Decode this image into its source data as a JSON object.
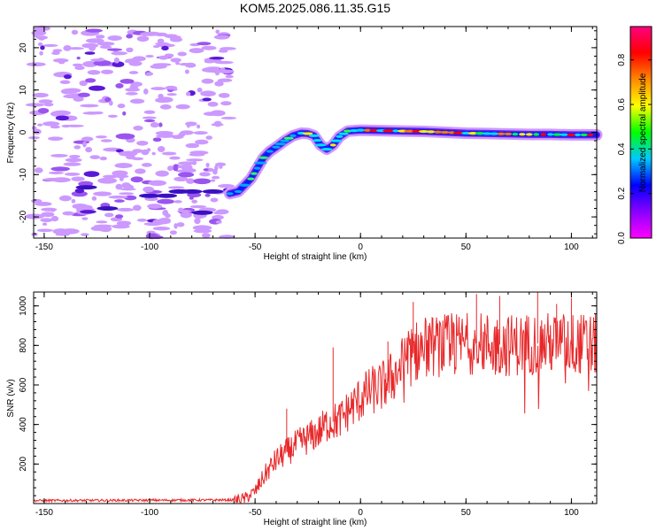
{
  "title": "KOM5.2025.086.11.35.G15",
  "chart_data": [
    {
      "type": "heatmap",
      "name": "spectrogram",
      "xlabel": "Height of straight line (km)",
      "ylabel": "Frequency (Hz)",
      "xlim": [
        -155,
        112
      ],
      "ylim": [
        -25,
        25
      ],
      "xticks": [
        -150,
        -100,
        -50,
        0,
        50,
        100
      ],
      "yticks": [
        -20,
        -10,
        0,
        10,
        20
      ],
      "colorbar": {
        "label": "Normalized spectral amplitude",
        "range": [
          0,
          0.95
        ],
        "ticks": [
          0.0,
          0.2,
          0.4,
          0.6,
          0.8
        ],
        "colormap": [
          "#ff00ff",
          "#8800ff",
          "#0000ff",
          "#00c8ff",
          "#00ff00",
          "#ffff00",
          "#ff8800",
          "#ff0000",
          "#ff0080"
        ]
      },
      "ridge": [
        [
          -62,
          -14.5
        ],
        [
          -58,
          -14
        ],
        [
          -55,
          -12.5
        ],
        [
          -52,
          -11
        ],
        [
          -49,
          -8.5
        ],
        [
          -46,
          -6
        ],
        [
          -43,
          -4.5
        ],
        [
          -40,
          -3.5
        ],
        [
          -36,
          -2
        ],
        [
          -32,
          -0.8
        ],
        [
          -28,
          -0.2
        ],
        [
          -25,
          -0.3
        ],
        [
          -22,
          -0.8
        ],
        [
          -19,
          -3
        ],
        [
          -16,
          -4
        ],
        [
          -13,
          -3
        ],
        [
          -10,
          -1
        ],
        [
          -6,
          0.3
        ],
        [
          0,
          0.5
        ],
        [
          10,
          0.4
        ],
        [
          20,
          0.3
        ],
        [
          30,
          0.2
        ],
        [
          40,
          0.0
        ],
        [
          50,
          -0.2
        ],
        [
          60,
          -0.3
        ],
        [
          70,
          -0.4
        ],
        [
          80,
          -0.5
        ],
        [
          90,
          -0.5
        ],
        [
          100,
          -0.6
        ],
        [
          112,
          -0.6
        ]
      ],
      "noise_extent": [
        -155,
        -62
      ]
    },
    {
      "type": "line",
      "name": "snr",
      "xlabel": "Height of straight line (km)",
      "ylabel": "SNR (v/v)",
      "xlim": [
        -155,
        112
      ],
      "ylim": [
        0,
        1070
      ],
      "xticks": [
        -150,
        -100,
        -50,
        0,
        50,
        100
      ],
      "yticks": [
        200,
        400,
        600,
        800,
        1000
      ],
      "color": "#e8282a",
      "envelope": [
        [
          -155,
          15
        ],
        [
          -60,
          18
        ],
        [
          -55,
          25
        ],
        [
          -50,
          60
        ],
        [
          -45,
          150
        ],
        [
          -40,
          220
        ],
        [
          -35,
          260
        ],
        [
          -30,
          300
        ],
        [
          -25,
          330
        ],
        [
          -20,
          360
        ],
        [
          -15,
          410
        ],
        [
          -10,
          420
        ],
        [
          -5,
          480
        ],
        [
          0,
          530
        ],
        [
          5,
          570
        ],
        [
          10,
          590
        ],
        [
          15,
          640
        ],
        [
          20,
          700
        ],
        [
          25,
          760
        ],
        [
          30,
          790
        ],
        [
          40,
          800
        ],
        [
          50,
          810
        ],
        [
          60,
          810
        ],
        [
          70,
          800
        ],
        [
          80,
          810
        ],
        [
          90,
          810
        ],
        [
          100,
          810
        ],
        [
          112,
          800
        ]
      ],
      "spikes": [
        [
          -13,
          790
        ],
        [
          -12,
          440
        ],
        [
          -35,
          480
        ],
        [
          12,
          660
        ],
        [
          13,
          820
        ],
        [
          25,
          1020
        ],
        [
          55,
          1060
        ],
        [
          66,
          1050
        ],
        [
          84,
          1080
        ],
        [
          93,
          1010
        ],
        [
          100,
          1040
        ],
        [
          110,
          700
        ]
      ]
    }
  ]
}
